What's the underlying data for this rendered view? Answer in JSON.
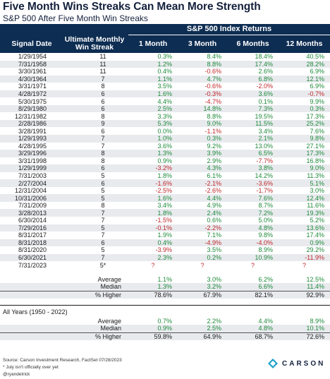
{
  "title": "Five Month Wins Streaks Can Mean More Strength",
  "subtitle": "S&P 500 After Five Month Win Streaks",
  "group_header": "S&P 500 Index Returns",
  "columns": [
    "Signal Date",
    "Ultimate Monthly Win Streak",
    "1 Month",
    "3 Month",
    "6 Months",
    "12 Months"
  ],
  "rows": [
    {
      "date": "1/29/1954",
      "streak": "11",
      "m1": "0.3%",
      "m3": "8.4%",
      "m6": "18.4%",
      "m12": "40.5%"
    },
    {
      "date": "7/31/1958",
      "streak": "11",
      "m1": "1.2%",
      "m3": "8.8%",
      "m6": "17.4%",
      "m12": "28.2%"
    },
    {
      "date": "3/30/1961",
      "streak": "11",
      "m1": "0.4%",
      "m3": "-0.6%",
      "m6": "2.6%",
      "m12": "6.9%"
    },
    {
      "date": "4/30/1964",
      "streak": "7",
      "m1": "1.1%",
      "m3": "4.7%",
      "m6": "6.8%",
      "m12": "12.1%"
    },
    {
      "date": "3/31/1971",
      "streak": "8",
      "m1": "3.5%",
      "m3": "-0.6%",
      "m6": "-2.0%",
      "m12": "6.9%"
    },
    {
      "date": "4/28/1972",
      "streak": "6",
      "m1": "1.6%",
      "m3": "-0.3%",
      "m6": "3.6%",
      "m12": "-0.7%"
    },
    {
      "date": "5/30/1975",
      "streak": "6",
      "m1": "4.4%",
      "m3": "-4.7%",
      "m6": "0.1%",
      "m12": "9.9%"
    },
    {
      "date": "8/29/1980",
      "streak": "6",
      "m1": "2.5%",
      "m3": "14.8%",
      "m6": "7.3%",
      "m12": "0.3%"
    },
    {
      "date": "12/31/1982",
      "streak": "8",
      "m1": "3.3%",
      "m3": "8.8%",
      "m6": "19.5%",
      "m12": "17.3%"
    },
    {
      "date": "2/28/1986",
      "streak": "9",
      "m1": "5.3%",
      "m3": "9.0%",
      "m6": "11.5%",
      "m12": "25.2%"
    },
    {
      "date": "3/28/1991",
      "streak": "6",
      "m1": "0.0%",
      "m3": "-1.1%",
      "m6": "3.4%",
      "m12": "7.6%"
    },
    {
      "date": "1/29/1993",
      "streak": "7",
      "m1": "1.0%",
      "m3": "0.3%",
      "m6": "2.1%",
      "m12": "9.8%"
    },
    {
      "date": "4/28/1995",
      "streak": "7",
      "m1": "3.6%",
      "m3": "9.2%",
      "m6": "13.0%",
      "m12": "27.1%"
    },
    {
      "date": "3/29/1996",
      "streak": "8",
      "m1": "1.3%",
      "m3": "3.9%",
      "m6": "6.5%",
      "m12": "17.3%"
    },
    {
      "date": "3/31/1998",
      "streak": "8",
      "m1": "0.9%",
      "m3": "2.9%",
      "m6": "-7.7%",
      "m12": "16.8%"
    },
    {
      "date": "1/29/1999",
      "streak": "6",
      "m1": "-3.2%",
      "m3": "4.3%",
      "m6": "3.8%",
      "m12": "9.0%"
    },
    {
      "date": "7/31/2003",
      "streak": "5",
      "m1": "1.8%",
      "m3": "6.1%",
      "m6": "14.2%",
      "m12": "11.3%"
    },
    {
      "date": "2/27/2004",
      "streak": "6",
      "m1": "-1.6%",
      "m3": "-2.1%",
      "m6": "-3.6%",
      "m12": "5.1%"
    },
    {
      "date": "12/31/2004",
      "streak": "5",
      "m1": "-2.5%",
      "m3": "-2.6%",
      "m6": "-1.7%",
      "m12": "3.0%"
    },
    {
      "date": "10/31/2006",
      "streak": "5",
      "m1": "1.6%",
      "m3": "4.4%",
      "m6": "7.6%",
      "m12": "12.4%"
    },
    {
      "date": "7/31/2009",
      "streak": "8",
      "m1": "3.4%",
      "m3": "4.9%",
      "m6": "8.7%",
      "m12": "11.6%"
    },
    {
      "date": "3/28/2013",
      "streak": "7",
      "m1": "1.8%",
      "m3": "2.4%",
      "m6": "7.2%",
      "m12": "19.3%"
    },
    {
      "date": "6/30/2014",
      "streak": "7",
      "m1": "-1.5%",
      "m3": "0.6%",
      "m6": "5.0%",
      "m12": "5.2%"
    },
    {
      "date": "7/29/2016",
      "streak": "5",
      "m1": "-0.1%",
      "m3": "-2.2%",
      "m6": "4.8%",
      "m12": "13.6%"
    },
    {
      "date": "8/31/2017",
      "streak": "7",
      "m1": "1.9%",
      "m3": "7.1%",
      "m6": "9.8%",
      "m12": "17.4%"
    },
    {
      "date": "8/31/2018",
      "streak": "6",
      "m1": "0.4%",
      "m3": "-4.9%",
      "m6": "-4.0%",
      "m12": "0.9%"
    },
    {
      "date": "8/31/2020",
      "streak": "5",
      "m1": "-3.9%",
      "m3": "3.5%",
      "m6": "8.9%",
      "m12": "29.2%"
    },
    {
      "date": "6/30/2021",
      "streak": "7",
      "m1": "2.3%",
      "m3": "0.2%",
      "m6": "10.9%",
      "m12": "-11.9%"
    },
    {
      "date": "7/31/2023",
      "streak": "5*",
      "m1": "?",
      "m3": "?",
      "m6": "?",
      "m12": "?"
    }
  ],
  "summary": [
    {
      "label": "Average",
      "m1": "1.1%",
      "m3": "3.0%",
      "m6": "6.2%",
      "m12": "12.5%"
    },
    {
      "label": "Median",
      "m1": "1.3%",
      "m3": "3.2%",
      "m6": "6.6%",
      "m12": "11.4%"
    },
    {
      "label": "% Higher",
      "m1": "78.6%",
      "m3": "67.9%",
      "m6": "82.1%",
      "m12": "92.9%"
    }
  ],
  "all_years_label": "All Years (1950 - 2022)",
  "all_years": [
    {
      "label": "Average",
      "m1": "0.7%",
      "m3": "2.2%",
      "m6": "4.4%",
      "m12": "8.9%"
    },
    {
      "label": "Median",
      "m1": "0.9%",
      "m3": "2.5%",
      "m6": "4.8%",
      "m12": "10.1%"
    },
    {
      "label": "% Higher",
      "m1": "59.8%",
      "m3": "64.9%",
      "m6": "68.7%",
      "m12": "72.6%"
    }
  ],
  "source": "Source: Carson Investment Research, FactSet 07/28/2023",
  "note": "* July isn't officially over yet",
  "handle": "@ryandetrick",
  "logo_text": "CARSON",
  "colors": {
    "header_bg": "#0e2d52",
    "positive": "#1e8a3a",
    "negative": "#c0282a",
    "stripe": "#e8eaee"
  }
}
